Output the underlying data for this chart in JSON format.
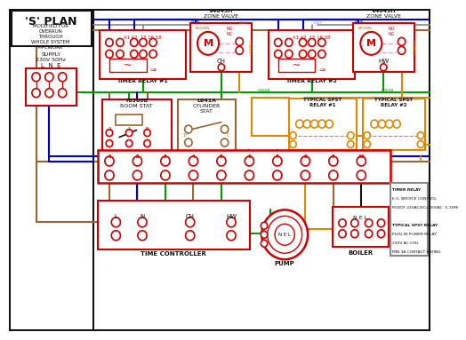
{
  "bg": "#ffffff",
  "R": "#cc0000",
  "B": "#0000cc",
  "G": "#009900",
  "O": "#dd8800",
  "BR": "#996633",
  "BK": "#111111",
  "GR": "#888888",
  "PK": "#ff99bb",
  "s_plan": "'S' PLAN",
  "sub": "MODIFIED FOR\nOVERRUN\nTHROUGH\nWHOLE SYSTEM\nPIPEWORK",
  "supply": "SUPPLY\n230V 50Hz",
  "lne": "L  N  E",
  "tr1": "TIMER RELAY #1",
  "tr2": "TIMER RELAY #2",
  "zv1": "V4043H\nZONE VALVE",
  "zv2": "V4043H\nZONE VALVE",
  "rs": "T6360B\nROOM STAT",
  "cs": "L641A\nCYLINDER\nSTAT",
  "spst1": "TYPICAL SPST\nRELAY #1",
  "spst2": "TYPICAL SPST\nRELAY #2",
  "tc": "TIME CONTROLLER",
  "pump": "PUMP",
  "boiler": "BOILER",
  "nel": "N E L",
  "info": [
    "TIMER RELAY",
    "E.G. BROYCE CONTROL",
    "M1EDF 24VAC/DC/230VAC  5-10Mi",
    "",
    "TYPICAL SPST RELAY",
    "PLUG-IN POWER RELAY",
    "230V AC COIL",
    "MIN 3A CONTACT RATING"
  ],
  "grey_lbl": "GREY",
  "blue_lbl": "BLUE",
  "brown_lbl": "BROWN",
  "green_lbl": "GREEN",
  "orange_lbl": "ORANGE",
  "ch_lbl": "CH",
  "hw_lbl": "HW",
  "a1a2": "A1 A2  15 16 18",
  "no": "NO",
  "nc": "NC",
  "c": "C",
  "tnums": [
    "1",
    "2",
    "3",
    "4",
    "5",
    "6",
    "7",
    "8",
    "9",
    "10"
  ]
}
